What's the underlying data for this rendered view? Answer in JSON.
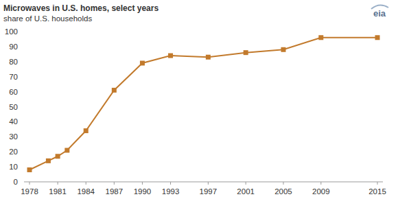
{
  "chart_data": {
    "type": "line",
    "title": "Microwaves in U.S. homes, select years",
    "subtitle": "share of U.S. households",
    "logo": "eia",
    "x": [
      1978,
      1980,
      1981,
      1982,
      1984,
      1987,
      1990,
      1993,
      1997,
      2001,
      2005,
      2009,
      2015
    ],
    "values": [
      8,
      14,
      17,
      21,
      34,
      61,
      79,
      84,
      83,
      86,
      88,
      96,
      96
    ],
    "color": "#c27a2c",
    "marker": "square",
    "line_style": "solid",
    "xlim": [
      1978,
      2015
    ],
    "xticks": [
      1978,
      1981,
      1984,
      1987,
      1990,
      1993,
      1997,
      2001,
      2005,
      2009,
      2015
    ],
    "ylim": [
      0,
      100
    ],
    "yticks": [
      0,
      10,
      20,
      30,
      40,
      50,
      60,
      70,
      80,
      90,
      100
    ],
    "grid": false
  }
}
